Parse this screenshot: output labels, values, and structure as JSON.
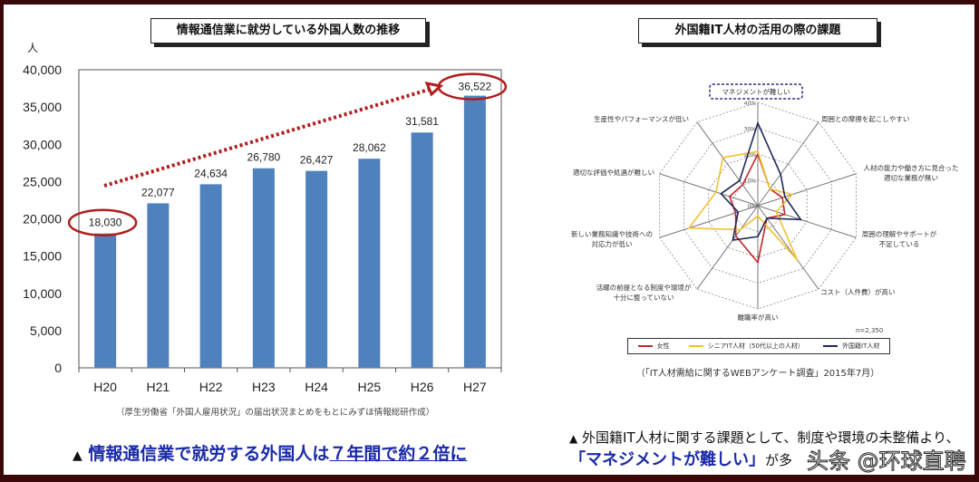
{
  "chart_data": [
    {
      "type": "bar",
      "title": "情報通信業に就労している外国人数の推移",
      "ylabel": "人",
      "categories": [
        "H20",
        "H21",
        "H22",
        "H23",
        "H24",
        "H25",
        "H26",
        "H27"
      ],
      "values": [
        18030,
        22077,
        24634,
        26780,
        26427,
        28062,
        31581,
        36522
      ],
      "data_labels": [
        "18,030",
        "22,077",
        "24,634",
        "26,780",
        "26,427",
        "28,062",
        "31,581",
        "36,522"
      ],
      "ylim": [
        0,
        40000
      ],
      "yticks": [
        "0",
        "5,000",
        "10,000",
        "15,000",
        "20,000",
        "25,000",
        "30,000",
        "35,000",
        "40,000"
      ],
      "bar_color": "#4f81bd",
      "highlight_color": "#b01e1e",
      "source": "（厚生労働省「外国人雇用状況」の届出状況まとめをもとにみずほ情報総研作成）"
    },
    {
      "type": "radar",
      "title": "外国籍IT人材の活用の際の課題",
      "axes": [
        "マネジメントが難しい",
        "周囲との摩擦を起こしやすい",
        "人材の能力や働き方に見合った\n適切な業務が無い",
        "周囲の理解やサポートが\n不足している",
        "コスト（人件費）が高い",
        "離職率が高い",
        "活躍の前提となる制度や環境が\n十分に整っていない",
        "新しい業務知識や技術への\n対応力が低い",
        "適切な評価や処遇が難しい",
        "生産性やパフォーマンスが低い"
      ],
      "rticks": [
        "0%",
        "10%",
        "20%",
        "30%",
        "40%"
      ],
      "rlim": [
        0,
        40
      ],
      "series": [
        {
          "name": "女性",
          "color": "#c0282d",
          "values": [
            20,
            8,
            10,
            11,
            6,
            22,
            14.5,
            9,
            11.5,
            10
          ]
        },
        {
          "name": "シニアIT人材（50代以上の人材）",
          "color": "#f2c12e",
          "values": [
            21,
            8,
            14,
            7.5,
            26,
            4,
            11.5,
            28,
            17,
            23
          ]
        },
        {
          "name": "外国籍IT人材",
          "color": "#1f2a5a",
          "values": [
            32,
            15,
            11,
            17.5,
            6,
            12,
            16.5,
            8,
            15,
            12
          ]
        }
      ],
      "note": "n=2,350",
      "source": "（「IT人材需給に関するWEBアンケート調査」2015年7月）"
    }
  ],
  "captions": {
    "left_marker": "▲",
    "left_main": "情報通信業で就労する外国人は",
    "left_underlined": "７年間で約２倍に",
    "right_marker": "▲",
    "right_line1": "外国籍IT人材に関する課題として、制度や環境の未整備より、",
    "right_highlight": "「マネジメントが難しい」",
    "right_rest": "が多"
  },
  "watermark": "头条 @环球直聘"
}
